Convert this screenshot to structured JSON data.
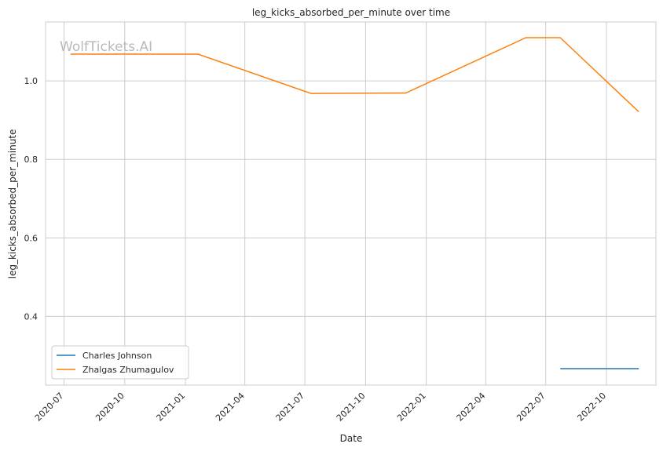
{
  "chart_data": {
    "type": "line",
    "title": "leg_kicks_absorbed_per_minute over time",
    "xlabel": "Date",
    "ylabel": "leg_kicks_absorbed_per_minute",
    "watermark": "WolfTickets.AI",
    "x_ticks": [
      "2020-07",
      "2020-10",
      "2021-01",
      "2021-04",
      "2021-07",
      "2021-10",
      "2022-01",
      "2022-04",
      "2022-07",
      "2022-10"
    ],
    "y_ticks": [
      "0.4",
      "0.6",
      "0.8",
      "1.0"
    ],
    "xlim": [
      "2020-06-03",
      "2022-12-15"
    ],
    "ylim": [
      0.225,
      1.15
    ],
    "grid": true,
    "legend_position": "lower-left",
    "series": [
      {
        "name": "Charles Johnson",
        "color": "#1f77b4",
        "points": [
          {
            "x": "2022-07-23",
            "y": 0.267
          },
          {
            "x": "2022-11-19",
            "y": 0.267
          }
        ]
      },
      {
        "name": "Zhalgas Zhumagulov",
        "color": "#ff7f0e",
        "points": [
          {
            "x": "2020-07-11",
            "y": 1.068
          },
          {
            "x": "2021-01-20",
            "y": 1.068
          },
          {
            "x": "2021-07-10",
            "y": 0.968
          },
          {
            "x": "2021-12-01",
            "y": 0.969
          },
          {
            "x": "2022-06-01",
            "y": 1.11
          },
          {
            "x": "2022-07-23",
            "y": 1.11
          },
          {
            "x": "2022-11-19",
            "y": 0.921
          }
        ]
      }
    ]
  }
}
